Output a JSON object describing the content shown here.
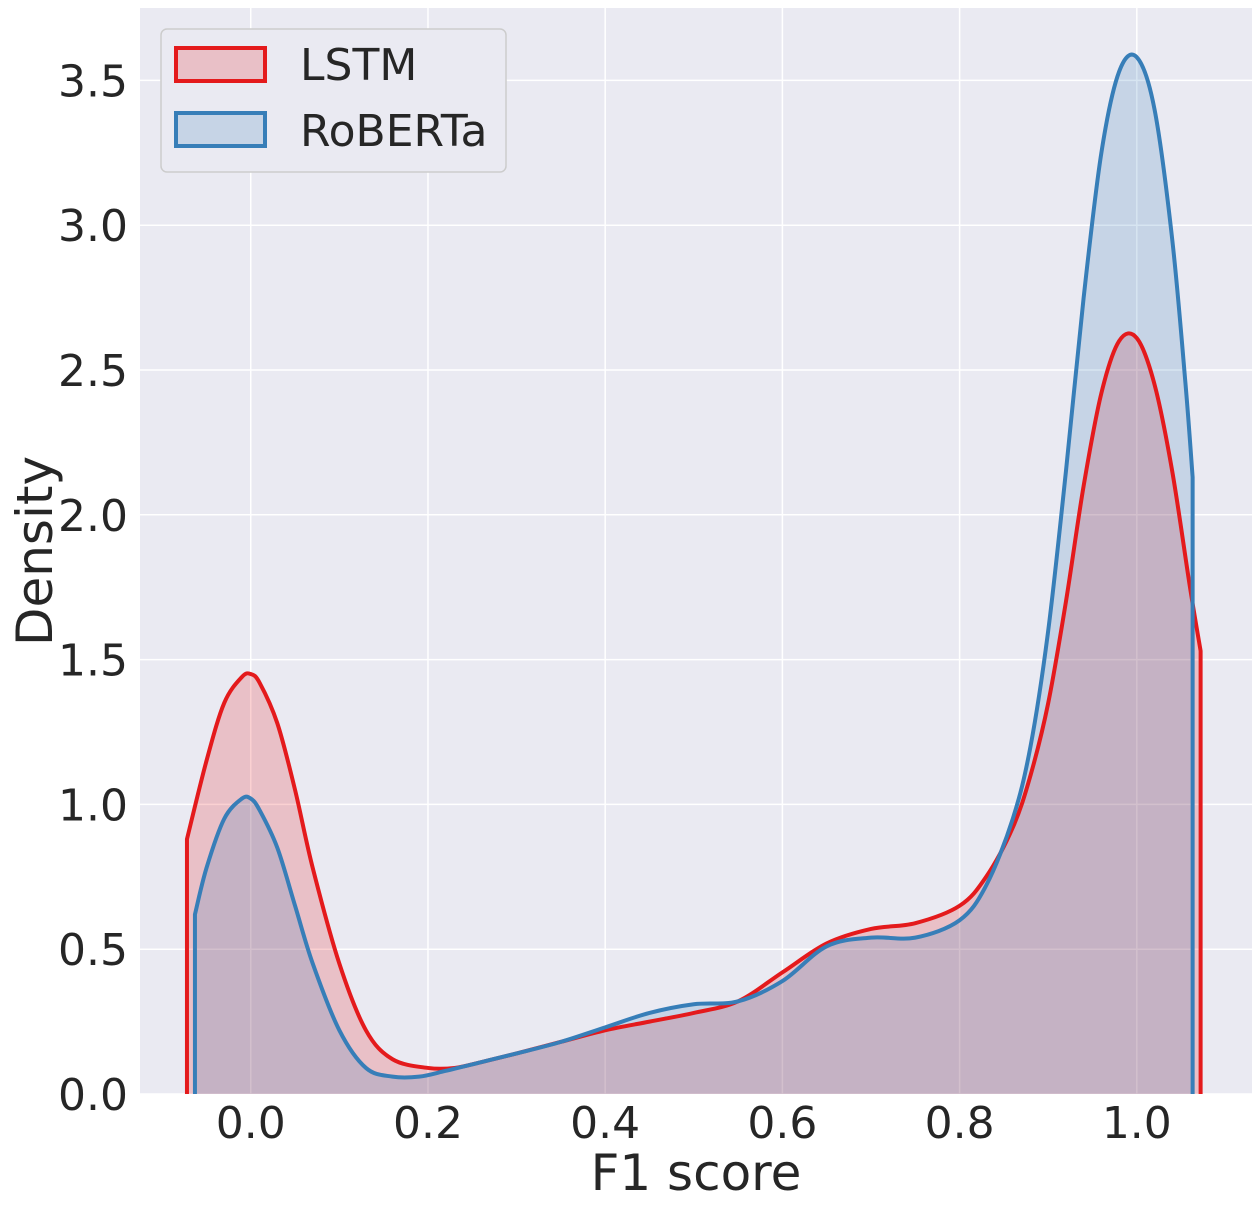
{
  "chart_data": {
    "type": "area",
    "xlabel": "F1 score",
    "ylabel": "Density",
    "xlim": [
      -0.125,
      1.13
    ],
    "ylim": [
      0,
      3.75
    ],
    "x_ticks": [
      "0.0",
      "0.2",
      "0.4",
      "0.6",
      "0.8",
      "1.0"
    ],
    "y_ticks": [
      "0.0",
      "0.5",
      "1.0",
      "1.5",
      "2.0",
      "2.5",
      "3.0",
      "3.5"
    ],
    "grid": true,
    "legend_position": "top-left",
    "series": [
      {
        "name": "LSTM",
        "color": "#e41a1c",
        "fill": "rgba(228,26,28,0.2)",
        "x": [
          -0.072,
          -0.05,
          -0.03,
          -0.01,
          0.0,
          0.01,
          0.03,
          0.05,
          0.07,
          0.1,
          0.13,
          0.16,
          0.2,
          0.23,
          0.26,
          0.3,
          0.35,
          0.4,
          0.45,
          0.5,
          0.55,
          0.6,
          0.65,
          0.7,
          0.75,
          0.8,
          0.83,
          0.86,
          0.88,
          0.9,
          0.92,
          0.94,
          0.96,
          0.98,
          1.0,
          1.02,
          1.04,
          1.06,
          1.072
        ],
        "y": [
          0.88,
          1.15,
          1.35,
          1.44,
          1.45,
          1.42,
          1.28,
          1.05,
          0.78,
          0.45,
          0.22,
          0.12,
          0.09,
          0.09,
          0.11,
          0.14,
          0.18,
          0.22,
          0.25,
          0.28,
          0.32,
          0.42,
          0.52,
          0.57,
          0.59,
          0.65,
          0.75,
          0.92,
          1.1,
          1.35,
          1.7,
          2.1,
          2.42,
          2.6,
          2.61,
          2.45,
          2.15,
          1.75,
          1.53
        ]
      },
      {
        "name": "RoBERTa",
        "color": "#377eb8",
        "fill": "rgba(55,126,184,0.2)",
        "x": [
          -0.063,
          -0.05,
          -0.03,
          -0.01,
          0.0,
          0.01,
          0.03,
          0.05,
          0.07,
          0.1,
          0.13,
          0.16,
          0.19,
          0.22,
          0.26,
          0.3,
          0.35,
          0.4,
          0.45,
          0.5,
          0.55,
          0.6,
          0.65,
          0.7,
          0.75,
          0.8,
          0.83,
          0.86,
          0.88,
          0.9,
          0.92,
          0.94,
          0.96,
          0.98,
          1.0,
          1.02,
          1.04,
          1.055,
          1.063
        ],
        "y": [
          0.62,
          0.78,
          0.95,
          1.02,
          1.02,
          0.98,
          0.85,
          0.65,
          0.45,
          0.22,
          0.09,
          0.06,
          0.06,
          0.08,
          0.11,
          0.14,
          0.18,
          0.23,
          0.28,
          0.31,
          0.32,
          0.39,
          0.51,
          0.54,
          0.54,
          0.6,
          0.72,
          0.95,
          1.2,
          1.6,
          2.15,
          2.75,
          3.25,
          3.53,
          3.58,
          3.4,
          2.95,
          2.45,
          2.13
        ]
      }
    ]
  }
}
